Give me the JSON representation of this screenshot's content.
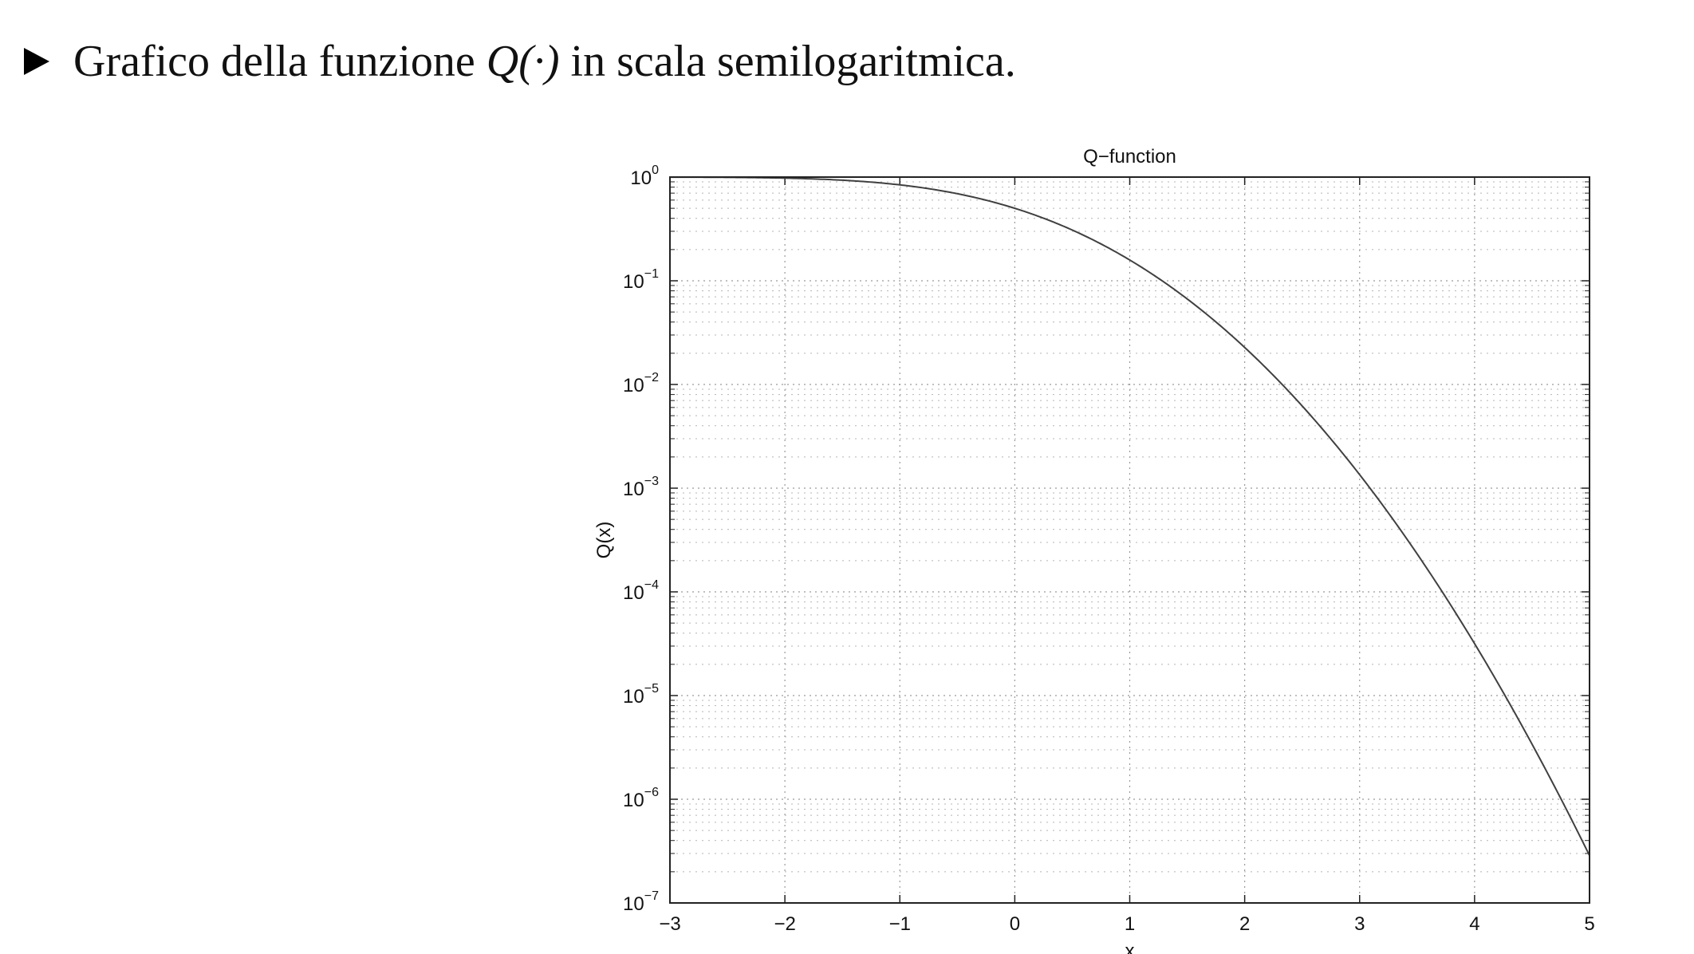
{
  "slide": {
    "bullet_icon": "right-pointing-triangle-icon",
    "text_before": "Grafico della funzione ",
    "math": "Q(·)",
    "text_after": " in scala semilogaritmica."
  },
  "chart_data": {
    "type": "line",
    "title": "Q−function",
    "xlabel": "x",
    "ylabel": "Q(x)",
    "xlim": [
      -3,
      5
    ],
    "ylim": [
      1e-07,
      1
    ],
    "yscale": "log",
    "grid": true,
    "minor_grid": true,
    "x_ticks": [
      "−3",
      "−2",
      "−1",
      "0",
      "1",
      "2",
      "3",
      "4",
      "5"
    ],
    "y_ticks": [
      {
        "base": "10",
        "exp": "0"
      },
      {
        "base": "10",
        "exp": "−1"
      },
      {
        "base": "10",
        "exp": "−2"
      },
      {
        "base": "10",
        "exp": "−3"
      },
      {
        "base": "10",
        "exp": "−4"
      },
      {
        "base": "10",
        "exp": "−5"
      },
      {
        "base": "10",
        "exp": "−6"
      },
      {
        "base": "10",
        "exp": "−7"
      }
    ],
    "series": [
      {
        "color": "#404040",
        "x": [
          -3,
          -2.5,
          -2,
          -1.5,
          -1,
          -0.5,
          0,
          0.5,
          1,
          1.5,
          2,
          2.5,
          3,
          3.5,
          4,
          4.5,
          5
        ],
        "y": [
          0.99865,
          0.99379,
          0.97725,
          0.93319,
          0.84134,
          0.69146,
          0.5,
          0.30854,
          0.15866,
          0.066807,
          0.02275,
          0.0062097,
          0.0013499,
          0.00023263,
          3.1671e-05,
          3.3977e-06,
          2.8665e-07
        ]
      }
    ]
  }
}
